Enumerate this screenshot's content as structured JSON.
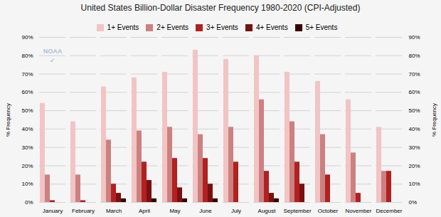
{
  "chart_data": {
    "type": "bar",
    "title": "United States Billion-Dollar Disaster Frequency 1980-2020 (CPI-Adjusted)",
    "categories": [
      "January",
      "February",
      "March",
      "April",
      "May",
      "June",
      "July",
      "August",
      "September",
      "October",
      "November",
      "December"
    ],
    "series": [
      {
        "name": "1+ Events",
        "color": "#f2c4c4",
        "values": [
          54,
          44,
          63,
          68,
          71,
          83,
          78,
          80,
          71,
          66,
          56,
          41
        ]
      },
      {
        "name": "2+ Events",
        "color": "#cc8080",
        "values": [
          15,
          15,
          34,
          39,
          41,
          37,
          41,
          56,
          44,
          37,
          27,
          17
        ]
      },
      {
        "name": "3+ Events",
        "color": "#b22020",
        "values": [
          1,
          1,
          10,
          22,
          24,
          24,
          22,
          17,
          22,
          15,
          5,
          17
        ]
      },
      {
        "name": "4+ Events",
        "color": "#7a1010",
        "values": [
          0,
          0,
          5,
          12,
          8,
          10,
          0,
          5,
          10,
          0,
          0,
          0
        ]
      },
      {
        "name": "5+ Events",
        "color": "#3d0000",
        "values": [
          0,
          0,
          2,
          2,
          2,
          2,
          0,
          2,
          0,
          0,
          0,
          0
        ]
      }
    ],
    "ylabel": "% Frequency",
    "y2label": "% Frequency",
    "ylim": [
      0,
      90
    ],
    "yticks": [
      {
        "value": 0,
        "label": "0%"
      },
      {
        "value": 10,
        "label": "10%"
      },
      {
        "value": 20,
        "label": "20%"
      },
      {
        "value": 30,
        "label": "30%"
      },
      {
        "value": 40,
        "label": "40%"
      },
      {
        "value": 50,
        "label": "50%"
      },
      {
        "value": 60,
        "label": "60%"
      },
      {
        "value": 70,
        "label": "70%"
      },
      {
        "value": 80,
        "label": "80%"
      },
      {
        "value": 90,
        "label": "90%"
      }
    ],
    "y2lim": [
      0,
      90
    ],
    "y2ticks": [
      {
        "value": 0,
        "label": "0%"
      },
      {
        "value": 10,
        "label": "10%"
      },
      {
        "value": 20,
        "label": "20%"
      },
      {
        "value": 30,
        "label": "30%"
      },
      {
        "value": 40,
        "label": "40%"
      },
      {
        "value": 50,
        "label": "50%"
      },
      {
        "value": 60,
        "label": "60%"
      },
      {
        "value": 70,
        "label": "70%"
      },
      {
        "value": 80,
        "label": "80%"
      },
      {
        "value": 90,
        "label": "90%"
      }
    ],
    "annotations": [
      "NOAA",
      "✓"
    ],
    "grid": true,
    "legend": "top"
  }
}
